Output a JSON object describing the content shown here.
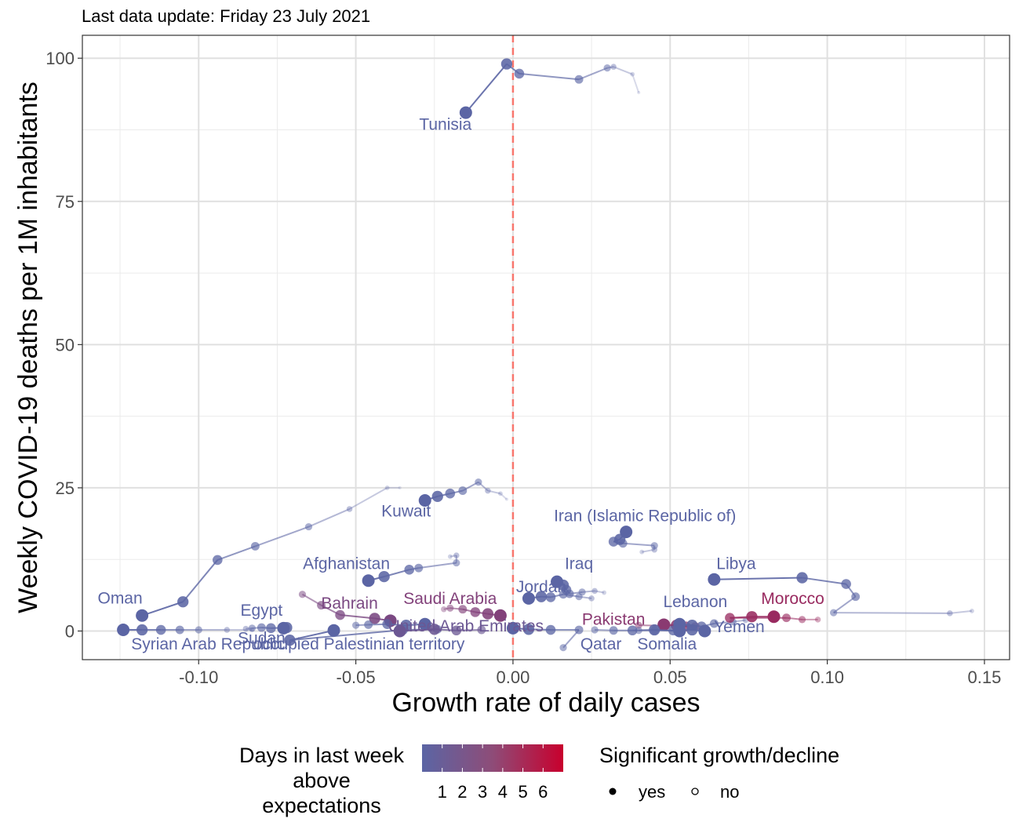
{
  "subtitle": "Last data update: Friday 23 July 2021",
  "chart_data": {
    "type": "scatter",
    "xlabel": "Growth rate of daily cases",
    "ylabel": "Weekly COVID-19 deaths per 1M inhabitants",
    "xlim": [
      -0.137,
      0.158
    ],
    "ylim": [
      -5,
      104
    ],
    "x_ticks": [
      -0.1,
      -0.05,
      0.0,
      0.05,
      0.1,
      0.15
    ],
    "x_tick_labels": [
      "-0.10",
      "-0.05",
      "0.00",
      "0.05",
      "0.10",
      "0.15"
    ],
    "y_ticks": [
      0,
      25,
      50,
      75,
      100
    ],
    "y_tick_labels": [
      "0",
      "25",
      "50",
      "75",
      "100"
    ],
    "reference_line_x": 0.0,
    "reference_line_color": "#f8766d",
    "color_scale": {
      "low": "#5b65a4",
      "high": "#c8002d",
      "min": 0,
      "max": 7
    },
    "legend": {
      "color_title_lines": [
        "Days in last week",
        "above",
        "expectations"
      ],
      "color_labels": [
        "1",
        "2",
        "3",
        "4",
        "5",
        "6"
      ],
      "shape_title": "Significant growth/decline",
      "shape_labels": [
        "yes",
        "no"
      ]
    },
    "series": [
      {
        "name": "Tunisia",
        "days": 0,
        "label_pos": [
          -0.0215,
          87.5
        ],
        "points": [
          [
            -0.015,
            90.5
          ],
          [
            -0.002,
            99
          ],
          [
            0.002,
            97.3
          ],
          [
            0.021,
            96.3
          ],
          [
            0.03,
            98.3
          ],
          [
            0.032,
            98.5
          ],
          [
            0.038,
            97.2
          ],
          [
            0.04,
            94
          ]
        ]
      },
      {
        "name": "Kuwait",
        "days": 0,
        "label_pos": [
          -0.034,
          20
        ],
        "points": [
          [
            -0.028,
            22.8
          ],
          [
            -0.024,
            23.5
          ],
          [
            -0.02,
            24
          ],
          [
            -0.016,
            24.5
          ],
          [
            -0.011,
            26
          ],
          [
            -0.008,
            24.5
          ],
          [
            -0.004,
            24
          ],
          [
            -0.002,
            23
          ]
        ]
      },
      {
        "name": "Oman",
        "days": 0,
        "label_pos": [
          -0.125,
          4.8
        ],
        "points": [
          [
            -0.118,
            2.7
          ],
          [
            -0.105,
            5.1
          ],
          [
            -0.094,
            12.4
          ],
          [
            -0.082,
            14.8
          ],
          [
            -0.065,
            18.2
          ],
          [
            -0.052,
            21.3
          ],
          [
            -0.04,
            25
          ],
          [
            -0.036,
            25
          ]
        ]
      },
      {
        "name": "Afghanistan",
        "days": 0,
        "label_pos": [
          -0.053,
          10.8
        ],
        "points": [
          [
            -0.046,
            8.8
          ],
          [
            -0.041,
            9.5
          ],
          [
            -0.033,
            10.7
          ],
          [
            -0.03,
            11
          ],
          [
            -0.018,
            11.9
          ],
          [
            -0.018,
            13.2
          ],
          [
            -0.02,
            13
          ]
        ]
      },
      {
        "name": "Iran (Islamic Republic of)",
        "days": 0,
        "label_pos": [
          0.042,
          19.2
        ],
        "points": [
          [
            0.036,
            17.3
          ],
          [
            0.034,
            16
          ],
          [
            0.032,
            15.6
          ],
          [
            0.035,
            15.3
          ],
          [
            0.045,
            14.9
          ],
          [
            0.045,
            14.2
          ],
          [
            0.041,
            13.8
          ]
        ]
      },
      {
        "name": "Iraq",
        "days": 0,
        "label_pos": [
          0.021,
          10.8
        ],
        "points": [
          [
            0.014,
            8.6
          ],
          [
            0.016,
            8
          ],
          [
            0.017,
            7.2
          ],
          [
            0.018,
            6.5
          ],
          [
            0.022,
            6.8
          ],
          [
            0.026,
            7
          ],
          [
            0.029,
            6.7
          ]
        ]
      },
      {
        "name": "Jordan",
        "days": 0,
        "label_pos": [
          0.009,
          6.8
        ],
        "points": [
          [
            0.005,
            5.7
          ],
          [
            0.009,
            6
          ],
          [
            0.012,
            5.9
          ],
          [
            0.016,
            6.4
          ],
          [
            0.021,
            6
          ],
          [
            0.025,
            5.7
          ]
        ]
      },
      {
        "name": "Libya",
        "days": 0,
        "label_pos": [
          0.071,
          10.8
        ],
        "points": [
          [
            0.064,
            9
          ],
          [
            0.092,
            9.3
          ],
          [
            0.106,
            8.2
          ],
          [
            0.109,
            6
          ],
          [
            0.102,
            3.2
          ],
          [
            0.139,
            3.1
          ],
          [
            0.146,
            3.5
          ]
        ]
      },
      {
        "name": "Egypt",
        "days": 0,
        "label_pos": [
          -0.08,
          2.7
        ],
        "points": [
          [
            -0.073,
            0.5
          ],
          [
            -0.072,
            0.6
          ],
          [
            -0.077,
            0.5
          ],
          [
            -0.08,
            0.6
          ],
          [
            -0.083,
            0.5
          ],
          [
            -0.085,
            0.4
          ]
        ]
      },
      {
        "name": "Bahrain",
        "days": 2,
        "label_pos": [
          -0.052,
          3.9
        ],
        "points": [
          [
            -0.039,
            1.8
          ],
          [
            -0.044,
            2.2
          ],
          [
            -0.055,
            2.8
          ],
          [
            -0.061,
            4.5
          ],
          [
            -0.067,
            6.4
          ]
        ]
      },
      {
        "name": "Saudi Arabia",
        "days": 2.5,
        "label_pos": [
          -0.02,
          4.7
        ],
        "points": [
          [
            -0.004,
            2.7
          ],
          [
            -0.008,
            3
          ],
          [
            -0.012,
            3.3
          ],
          [
            -0.016,
            3.8
          ],
          [
            -0.02,
            4
          ],
          [
            -0.022,
            3.8
          ]
        ]
      },
      {
        "name": "Syrian Arab Republic",
        "days": 0,
        "label_pos": [
          -0.097,
          -3.2
        ],
        "points": [
          [
            -0.124,
            0.2
          ],
          [
            -0.118,
            0.2
          ],
          [
            -0.112,
            0.2
          ],
          [
            -0.106,
            0.2
          ],
          [
            -0.1,
            0.2
          ],
          [
            -0.091,
            0.2
          ],
          [
            -0.083,
            0.2
          ]
        ]
      },
      {
        "name": "Sudan",
        "days": 0,
        "label_pos": [
          -0.08,
          -2.2
        ],
        "points": [
          [
            -0.057,
            0.1
          ],
          [
            -0.071,
            -1.6
          ],
          [
            -0.035,
            0.2
          ],
          [
            -0.024,
            0.3
          ]
        ]
      },
      {
        "name": "occupied Palestinian territory",
        "days": 0,
        "label_pos": [
          -0.049,
          -3.2
        ],
        "points": [
          [
            -0.028,
            1.2
          ],
          [
            -0.034,
            1
          ],
          [
            -0.04,
            1.2
          ],
          [
            -0.046,
            1.1
          ],
          [
            -0.05,
            1
          ]
        ]
      },
      {
        "name": "United Arab Emirates",
        "days": 1,
        "label_pos": [
          -0.015,
          -0.1
        ],
        "points": [
          [
            -0.036,
            0
          ],
          [
            -0.025,
            0.3
          ],
          [
            -0.018,
            0.1
          ],
          [
            -0.01,
            0.2
          ]
        ]
      },
      {
        "name": "Qatar",
        "days": 0,
        "label_pos": [
          0.028,
          -3.2
        ],
        "points": [
          [
            0.0,
            0.5
          ],
          [
            0.005,
            0.3
          ],
          [
            0.012,
            0.2
          ],
          [
            0.021,
            0.2
          ],
          [
            0.016,
            -2.9
          ]
        ]
      },
      {
        "name": "Pakistan",
        "days": 3,
        "label_pos": [
          0.032,
          1.1
        ],
        "points": [
          [
            0.048,
            1.1
          ],
          [
            0.052,
            1
          ],
          [
            0.055,
            0.8
          ],
          [
            0.058,
            0.8
          ],
          [
            0.04,
            1
          ]
        ]
      },
      {
        "name": "Lebanon",
        "days": 0,
        "label_pos": [
          0.058,
          4.2
        ],
        "points": [
          [
            0.053,
            1.2
          ],
          [
            0.057,
            1
          ],
          [
            0.06,
            0.8
          ],
          [
            0.064,
            1.3
          ],
          [
            0.07,
            1.6
          ],
          [
            0.074,
            1.9
          ]
        ]
      },
      {
        "name": "Morocco",
        "days": 4,
        "label_pos": [
          0.089,
          4.7
        ],
        "points": [
          [
            0.083,
            2.5
          ],
          [
            0.076,
            2.5
          ],
          [
            0.069,
            2.3
          ],
          [
            0.087,
            2.3
          ],
          [
            0.092,
            2
          ],
          [
            0.097,
            2
          ]
        ]
      },
      {
        "name": "Yemen",
        "days": 0,
        "label_pos": [
          0.072,
          -0.2
        ],
        "points": [
          [
            0.061,
            0
          ],
          [
            0.057,
            0.2
          ],
          [
            0.051,
            0.1
          ],
          [
            0.045,
            0.1
          ],
          [
            0.04,
            0.1
          ]
        ]
      },
      {
        "name": "Somalia",
        "days": 0,
        "label_pos": [
          0.049,
          -3.2
        ],
        "points": [
          [
            0.053,
            0
          ],
          [
            0.045,
            0.2
          ],
          [
            0.038,
            0.1
          ],
          [
            0.032,
            0.1
          ],
          [
            0.026,
            0.2
          ]
        ]
      }
    ]
  }
}
